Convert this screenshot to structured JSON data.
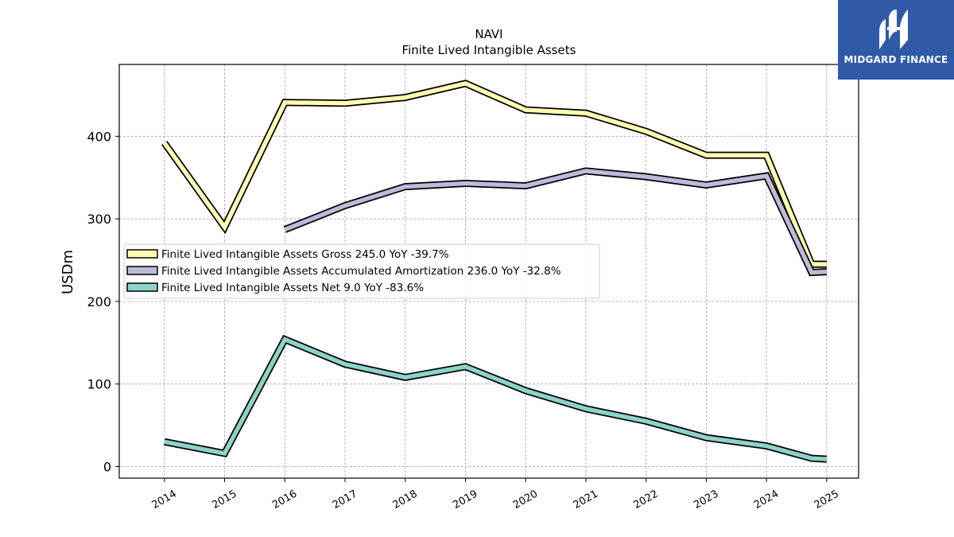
{
  "brand": {
    "name": "MIDGARD FINANCE",
    "bg_color": "#2e5aa8"
  },
  "chart_data": {
    "type": "line",
    "title": "NAVI",
    "subtitle": "Finite Lived Intangible Assets",
    "xlabel": "",
    "ylabel": "USDm",
    "ylim": [
      -14,
      487
    ],
    "xlim": [
      2013.25,
      2025.53
    ],
    "yticks": [
      0,
      100,
      200,
      300,
      400
    ],
    "xticks": [
      2014,
      2015,
      2016,
      2017,
      2018,
      2019,
      2020,
      2021,
      2022,
      2023,
      2024,
      2025
    ],
    "grid": true,
    "legend_position": "center-left",
    "series": [
      {
        "name": "Finite Lived Intangible Assets Gross",
        "legend": "Finite Lived Intangible Assets Gross  245.0 YoY -39.7%",
        "color": "#ffffb3",
        "x": [
          2014,
          2015,
          2016,
          2017,
          2018,
          2019,
          2020,
          2021,
          2022,
          2023,
          2024,
          2024.75,
          2025
        ],
        "y": [
          392,
          290,
          441,
          440,
          447,
          464,
          432,
          428,
          406,
          377,
          377,
          245,
          245
        ]
      },
      {
        "name": "Finite Lived Intangible Assets Accumulated Amortization",
        "legend": "Finite Lived Intangible Assets Accumulated Amortization  236.0 YoY -32.8%",
        "color": "#bebada",
        "x": [
          2016,
          2017,
          2018,
          2019,
          2020,
          2021,
          2022,
          2023,
          2024,
          2024.75,
          2025
        ],
        "y": [
          287,
          316,
          339,
          343,
          340,
          358,
          351,
          341,
          352,
          235,
          236
        ]
      },
      {
        "name": "Finite Lived Intangible Assets Net",
        "legend": "Finite Lived Intangible Assets Net  9.0 YoY -83.6%",
        "color": "#8dd3c7",
        "x": [
          2014,
          2015,
          2016,
          2017,
          2018,
          2019,
          2020,
          2021,
          2022,
          2023,
          2024,
          2024.75,
          2025
        ],
        "y": [
          30,
          16,
          154,
          124,
          108,
          121,
          92,
          70,
          55,
          35,
          25,
          10,
          9
        ]
      }
    ]
  }
}
